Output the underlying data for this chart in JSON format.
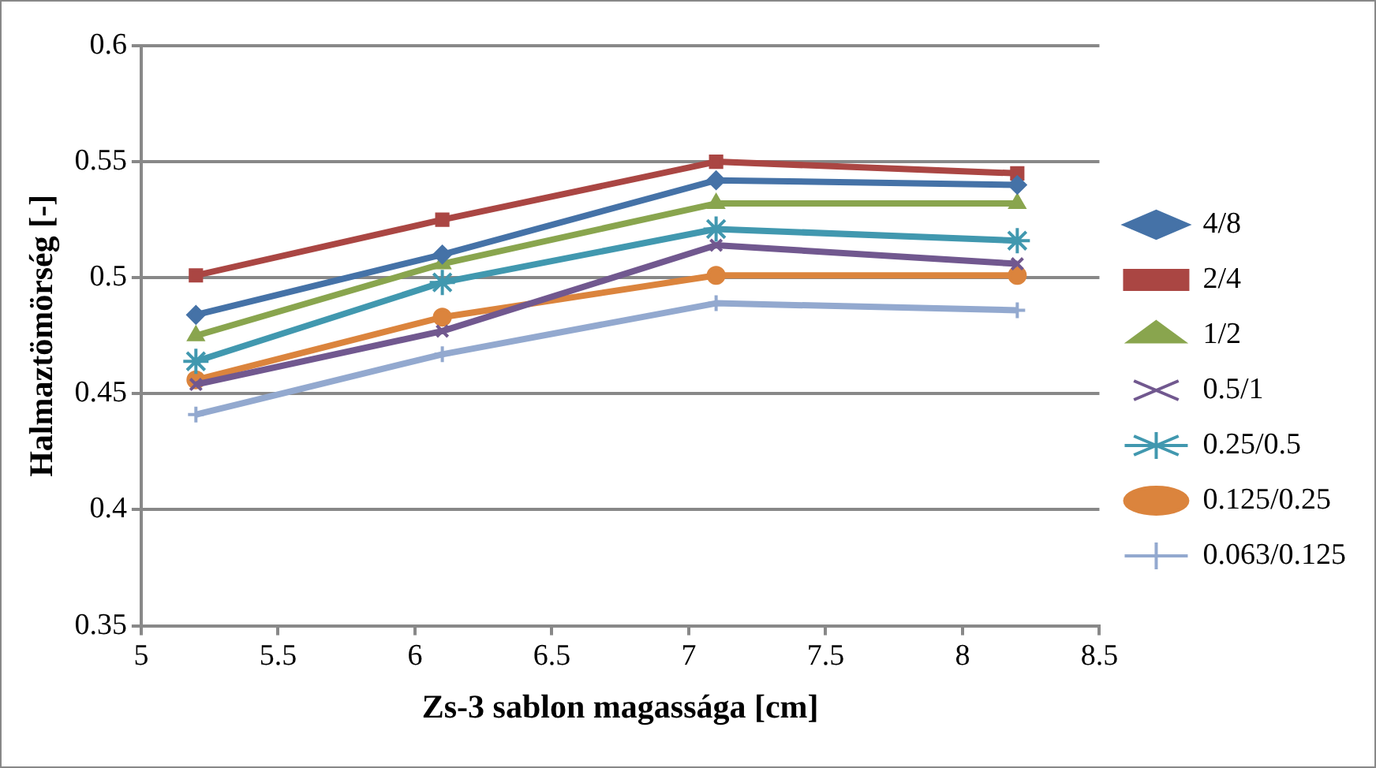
{
  "chart_data": {
    "type": "line",
    "xlabel": "Zs-3 sablon magassága [cm]",
    "ylabel": "Halmaztömörség [-]",
    "x": [
      5.2,
      6.1,
      7.1,
      8.2
    ],
    "xlim": [
      5,
      8.5
    ],
    "xticks": [
      5,
      5.5,
      6,
      6.5,
      7,
      7.5,
      8,
      8.5
    ],
    "ylim": [
      0.35,
      0.6
    ],
    "yticks": [
      0.35,
      0.4,
      0.45,
      0.5,
      0.55,
      0.6
    ],
    "grid": "y",
    "legend": "right",
    "line_style": "solid",
    "series": [
      {
        "name": "4/8",
        "color": "#4572a7",
        "marker": "diamond",
        "values": [
          0.484,
          0.51,
          0.542,
          0.54
        ]
      },
      {
        "name": "2/4",
        "color": "#aa4643",
        "marker": "square",
        "values": [
          0.501,
          0.525,
          0.55,
          0.545
        ]
      },
      {
        "name": "1/2",
        "color": "#89a54e",
        "marker": "triangle",
        "values": [
          0.475,
          0.506,
          0.532,
          0.532
        ]
      },
      {
        "name": "0.5/1",
        "color": "#71588f",
        "marker": "x",
        "values": [
          0.454,
          0.477,
          0.514,
          0.506
        ]
      },
      {
        "name": "0.25/0.5",
        "color": "#4198af",
        "marker": "cross",
        "values": [
          0.464,
          0.498,
          0.521,
          0.516
        ]
      },
      {
        "name": "0.125/0.25",
        "color": "#db843d",
        "marker": "circle",
        "values": [
          0.456,
          0.483,
          0.501,
          0.501
        ]
      },
      {
        "name": "0.063/0.125",
        "color": "#93a9cf",
        "marker": "plus",
        "values": [
          0.441,
          0.467,
          0.489,
          0.486
        ]
      }
    ]
  }
}
